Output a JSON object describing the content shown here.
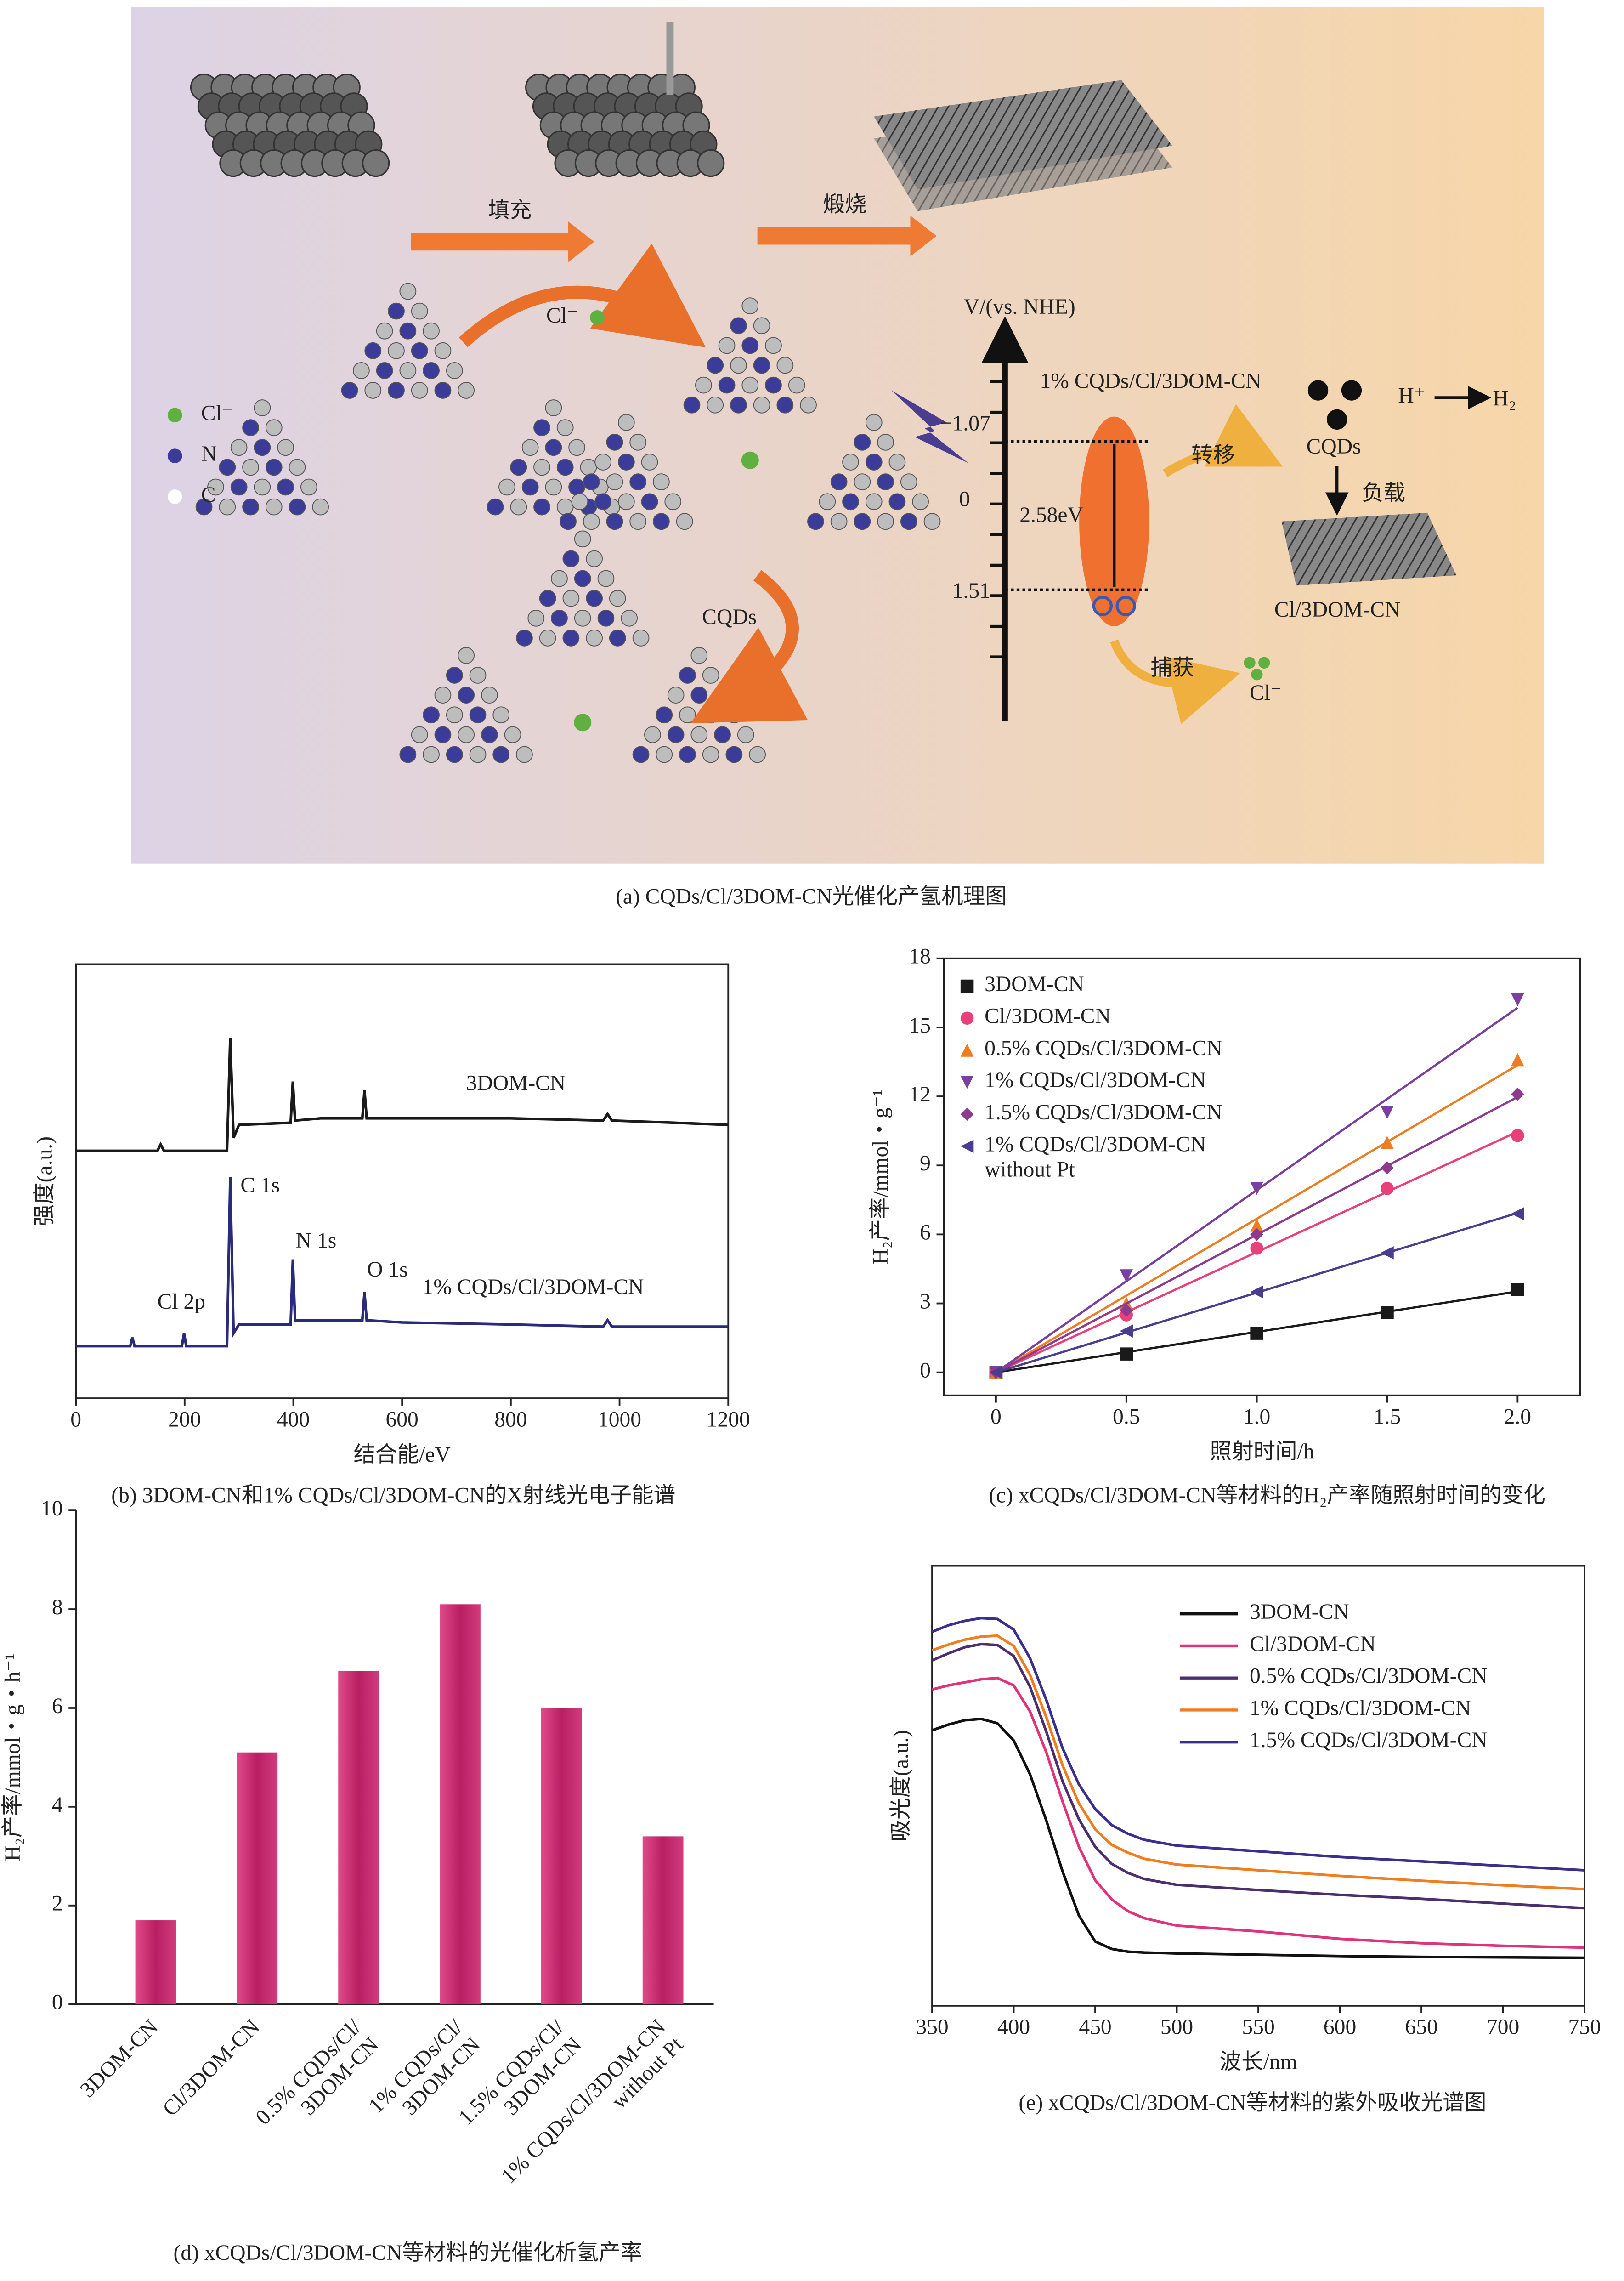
{
  "diagram": {
    "steps": [
      "填充",
      "煅烧"
    ],
    "legend": [
      "Cl⁻",
      "N",
      "C"
    ],
    "cl_label": "Cl⁻",
    "cqds_label": "CQDs",
    "axis_label": "V/(vs. NHE)",
    "material": "1% CQDs/Cl/3DOM-CN",
    "levels": [
      "−1.07",
      "0",
      "1.51"
    ],
    "gap": "2.58eV",
    "transfer": "转移",
    "cqds": "CQDs",
    "h_plus": "H⁺",
    "h2": "H₂",
    "load": "负载",
    "support": "Cl/3DOM-CN",
    "capture": "捕获",
    "cl_ion": "Cl⁻",
    "caption": "(a) CQDs/Cl/3DOM-CN光催化产氢机理图"
  },
  "chart_data": [
    {
      "type": "line",
      "caption": "(b) 3DOM-CN和1% CQDs/Cl/3DOM-CN的X射线光电子能谱",
      "xlabel": "结合能/eV",
      "ylabel": "强度(a.u.)",
      "x": [
        0,
        100,
        104,
        108,
        150,
        156,
        162,
        195,
        199,
        203,
        278,
        284,
        290,
        300,
        395,
        399,
        403,
        450,
        527,
        531,
        535,
        600,
        800,
        970,
        978,
        986,
        1100,
        1200
      ],
      "series": [
        {
          "name": "3DOM-CN",
          "color": "#1a1a1a",
          "values": [
            57,
            57,
            57,
            57,
            57,
            58.5,
            57,
            57,
            57,
            57,
            57,
            83,
            60,
            63,
            63.5,
            73,
            64,
            64.5,
            64.5,
            71,
            64.5,
            64.5,
            64.5,
            64,
            65.5,
            64,
            63.5,
            63
          ]
        },
        {
          "name": "1% CQDs/Cl/3DOM-CN",
          "color": "#2b2a7a",
          "values": [
            12,
            12,
            14,
            12,
            12,
            12,
            12,
            12,
            15,
            12,
            12,
            51,
            15,
            17,
            17,
            32,
            18,
            18,
            18,
            24.5,
            18,
            17.5,
            17,
            16.5,
            18,
            16.5,
            16.5,
            16.5
          ]
        }
      ],
      "annotations": [
        "C 1s",
        "N 1s",
        "O 1s",
        "Cl 2p"
      ],
      "xlim": [
        0,
        1200
      ],
      "xticks": [
        0,
        200,
        400,
        600,
        800,
        1000,
        1200
      ],
      "ylim": [
        0,
        100
      ]
    },
    {
      "type": "scatter",
      "caption": "(c) xCQDs/Cl/3DOM-CN等材料的H₂产率随照射时间的变化",
      "xlabel": "照射时间/h",
      "ylabel": "H₂产率/mmol・g⁻¹",
      "trendline": true,
      "x": [
        0,
        0.5,
        1.0,
        1.5,
        2.0
      ],
      "series": [
        {
          "name": "3DOM-CN",
          "color": "#1a1a1a",
          "marker": "square",
          "values": [
            0,
            0.8,
            1.7,
            2.6,
            3.6
          ]
        },
        {
          "name": "Cl/3DOM-CN",
          "color": "#e8417a",
          "marker": "circle",
          "values": [
            0,
            2.5,
            5.4,
            8.0,
            10.3
          ]
        },
        {
          "name": "0.5% CQDs/Cl/3DOM-CN",
          "color": "#f07c22",
          "marker": "triangle-up",
          "values": [
            0,
            3.0,
            6.4,
            10.0,
            13.6
          ]
        },
        {
          "name": "1% CQDs/Cl/3DOM-CN",
          "color": "#7a3fa0",
          "marker": "triangle-down",
          "values": [
            0,
            4.2,
            8.0,
            11.3,
            16.2
          ]
        },
        {
          "name": "1.5% CQDs/Cl/3DOM-CN",
          "color": "#8e3a8e",
          "marker": "diamond",
          "values": [
            0,
            2.7,
            6.0,
            8.9,
            12.1
          ]
        },
        {
          "name": "1% CQDs/Cl/3DOM-CN\nwithout Pt",
          "color": "#4a3d8f",
          "marker": "triangle-left",
          "values": [
            0,
            1.8,
            3.5,
            5.2,
            6.9
          ]
        }
      ],
      "xlim": [
        -0.2,
        2.24
      ],
      "xticks": [
        0,
        0.5,
        {
          "value": 1,
          "label": "1.0"
        },
        1.5,
        {
          "value": 2,
          "label": "2.0"
        }
      ],
      "ylim": [
        -1,
        18
      ],
      "yticks": [
        0,
        3,
        6,
        9,
        12,
        15,
        18
      ]
    },
    {
      "type": "bar",
      "caption": "(d) xCQDs/Cl/3DOM-CN等材料的光催化析氢产率",
      "ylabel": "H₂产率/mmol・g・h⁻¹",
      "color": "#c0266b",
      "categories": [
        "3DOM-CN",
        "Cl/3DOM-CN",
        "0.5% CQDs/Cl/\n3DOM-CN",
        "1% CQDs/Cl/\n3DOM-CN",
        "1.5% CQDs/Cl/\n3DOM-CN",
        "1% CQDs/Cl/3DOM-CN\nwithout Pt"
      ],
      "values": [
        1.7,
        5.1,
        6.75,
        8.1,
        6.0,
        3.4
      ],
      "ylim": [
        0,
        10
      ],
      "yticks": [
        0,
        2,
        4,
        6,
        8,
        10
      ]
    },
    {
      "type": "line",
      "caption": "(e) xCQDs/Cl/3DOM-CN等材料的紫外吸收光谱图",
      "xlabel": "波长/nm",
      "ylabel": "吸光度(a.u.)",
      "x": [
        350,
        360,
        370,
        380,
        390,
        400,
        410,
        420,
        430,
        440,
        450,
        460,
        470,
        480,
        500,
        550,
        600,
        650,
        700,
        750
      ],
      "series": [
        {
          "name": "3DOM-CN",
          "color": "#111111",
          "values": [
            62.6,
            63.9,
            64.9,
            65.2,
            64.2,
            60.3,
            52.6,
            42.1,
            30.5,
            20.5,
            14.6,
            12.9,
            12.3,
            12.1,
            11.9,
            11.6,
            11.3,
            11.1,
            11.0,
            10.9
          ]
        },
        {
          "name": "Cl/3DOM-CN",
          "color": "#e0337a",
          "values": [
            71.9,
            72.8,
            73.5,
            74.2,
            74.5,
            72.8,
            66.9,
            57.6,
            46.4,
            36.1,
            28.5,
            24.2,
            21.5,
            19.9,
            18.2,
            16.9,
            15.2,
            14.2,
            13.6,
            13.2
          ]
        },
        {
          "name": "0.5% CQDs/Cl/3DOM-CN",
          "color": "#4a2e6e",
          "values": [
            78.5,
            80.1,
            81.5,
            82.2,
            82.0,
            79.5,
            72.5,
            62.3,
            51.0,
            42.4,
            36.1,
            32.3,
            30.2,
            28.8,
            27.5,
            26.3,
            25.2,
            24.3,
            23.2,
            22.2
          ]
        },
        {
          "name": "1% CQDs/Cl/3DOM-CN",
          "color": "#f07d1f",
          "values": [
            80.8,
            82.1,
            83.2,
            83.9,
            84.1,
            81.8,
            75.2,
            65.6,
            54.6,
            46.0,
            40.1,
            36.6,
            34.8,
            33.4,
            32.1,
            30.8,
            29.5,
            28.4,
            27.4,
            26.5
          ]
        },
        {
          "name": "1.5% CQDs/Cl/3DOM-CN",
          "color": "#3a2f8f",
          "values": [
            85.0,
            86.5,
            87.5,
            88.1,
            87.9,
            85.5,
            79.0,
            69.5,
            58.5,
            50.3,
            44.7,
            41.1,
            39.1,
            37.7,
            36.4,
            35.1,
            33.8,
            32.8,
            31.8,
            30.8
          ]
        }
      ],
      "xlim": [
        350,
        750
      ],
      "xticks": [
        350,
        400,
        450,
        500,
        550,
        600,
        650,
        700,
        750
      ],
      "ylim": [
        0,
        100
      ]
    }
  ]
}
